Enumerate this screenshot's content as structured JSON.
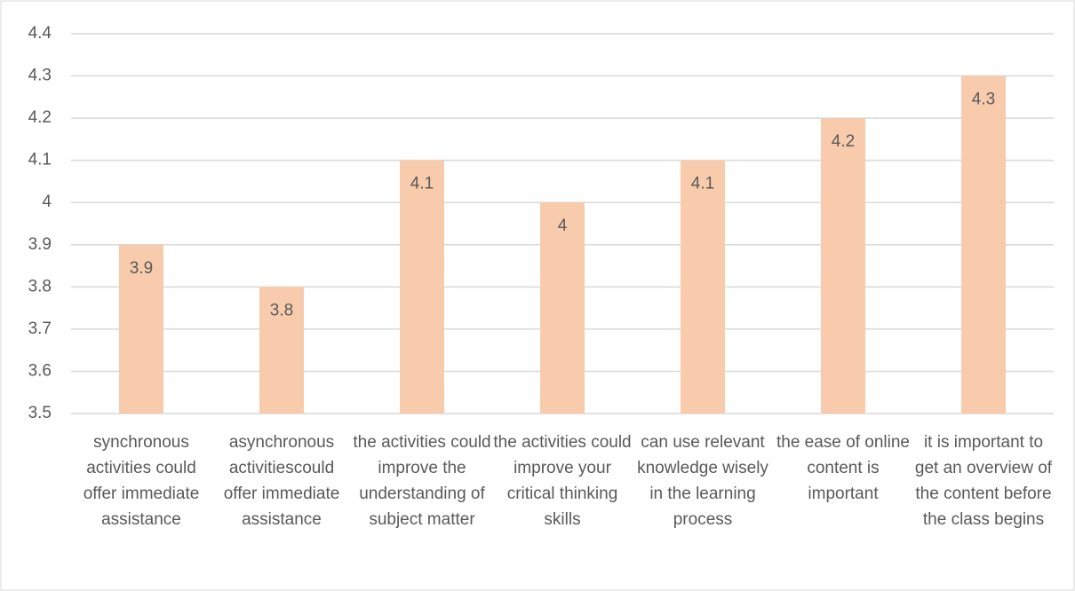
{
  "chart_data": {
    "type": "bar",
    "categories": [
      "synchronous activities could offer immediate assistance",
      "asynchronous activitiescould offer immediate assistance",
      "the activities could improve the understanding of subject matter",
      "the activities could improve your critical thinking skills",
      "can use relevant knowledge wisely in the learning process",
      "the ease of online content is important",
      "it is important to get an overview of the content before the class begins"
    ],
    "values": [
      3.9,
      3.8,
      4.1,
      4,
      4.1,
      4.2,
      4.3
    ],
    "color": "#f8cbad",
    "ylim": [
      3.5,
      4.4
    ],
    "yticks": [
      3.5,
      3.6,
      3.7,
      3.8,
      3.9,
      4,
      4.1,
      4.2,
      4.3,
      4.4
    ],
    "grid": true
  }
}
